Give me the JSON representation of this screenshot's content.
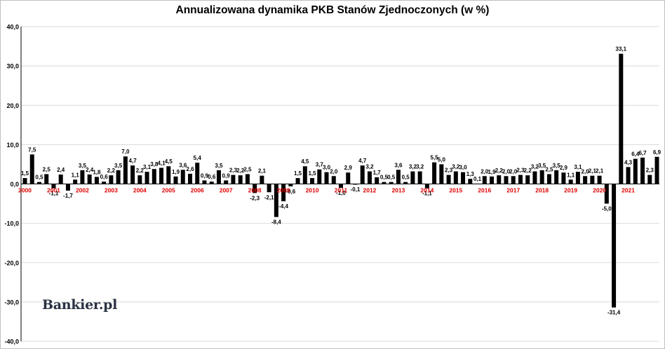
{
  "chart_data": {
    "type": "bar",
    "title": "Annualizowana dynamika PKB Stanów Zjednoczonych (w %)",
    "xlabel": "",
    "ylabel": "",
    "ylim": [
      -40,
      40
    ],
    "yticks": [
      "40,0",
      "30,0",
      "20,0",
      "10,0",
      "0,0",
      "-10,0",
      "-20,0",
      "-30,0",
      "-40,0"
    ],
    "grid": true,
    "legend": "none",
    "bar_color": "#000000",
    "year_label_color": "#e00000",
    "years": [
      "2000",
      "2001",
      "2002",
      "2003",
      "2004",
      "2005",
      "2006",
      "2007",
      "2008",
      "2009",
      "2010",
      "2011",
      "2012",
      "2013",
      "2014",
      "2015",
      "2016",
      "2017",
      "2018",
      "2019",
      "2020",
      "2021"
    ],
    "values": [
      1.5,
      7.5,
      0.5,
      2.5,
      -1.1,
      2.4,
      -1.7,
      1.1,
      3.5,
      2.4,
      1.8,
      0.6,
      2.2,
      3.5,
      7.0,
      4.7,
      2.2,
      3.1,
      3.8,
      4.1,
      4.5,
      1.9,
      3.6,
      2.6,
      5.4,
      0.9,
      0.6,
      3.5,
      0.9,
      2.3,
      2.2,
      2.5,
      -2.3,
      2.1,
      -2.1,
      -8.4,
      -4.4,
      -0.6,
      1.5,
      4.5,
      1.5,
      3.7,
      3.0,
      2.0,
      -1.0,
      2.9,
      -0.1,
      4.7,
      3.2,
      1.7,
      0.5,
      0.5,
      3.6,
      0.5,
      3.2,
      3.2,
      -1.1,
      5.5,
      5.0,
      2.3,
      3.2,
      3.0,
      1.3,
      0.1,
      2.0,
      1.9,
      2.2,
      2.0,
      2.0,
      2.3,
      2.2,
      3.2,
      3.5,
      2.5,
      3.5,
      2.9,
      1.1,
      3.1,
      2.0,
      2.1,
      2.1,
      -5.0,
      -31.4,
      33.1,
      4.3,
      6.4,
      6.7,
      2.3,
      6.9
    ],
    "value_labels": [
      "1,5",
      "7,5",
      "0,5",
      "2,5",
      "-1,1",
      "2,4",
      "-1,7",
      "1,1",
      "3,5",
      "2,4",
      "1,8",
      "0,6",
      "2,2",
      "3,5",
      "7,0",
      "4,7",
      "2,2",
      "3,1",
      "3,8",
      "4,1",
      "4,5",
      "1,9",
      "3,6",
      "2,6",
      "5,4",
      "0,9",
      "0,6",
      "3,5",
      "0,9",
      "2,3",
      "2,2",
      "2,5",
      "-2,3",
      "2,1",
      "-2,1",
      "-8,4",
      "-4,4",
      "-0,6",
      "1,5",
      "4,5",
      "1,5",
      "3,7",
      "3,0",
      "2,0",
      "-1,0",
      "2,9",
      "-0,1",
      "4,7",
      "3,2",
      "1,7",
      "0,5",
      "0,5",
      "3,6",
      "0,5",
      "3,2",
      "3,2",
      "-1,1",
      "5,5",
      "5,0",
      "2,3",
      "3,2",
      "3,0",
      "1,3",
      "0,1",
      "2,0",
      "1,9",
      "2,2",
      "2,0",
      "2,0",
      "2,3",
      "2,2",
      "3,2",
      "3,5",
      "2,5",
      "3,5",
      "2,9",
      "1,1",
      "3,1",
      "2,0",
      "2,1",
      "2,1",
      "-5,0",
      "-31,4",
      "33,1",
      "4,3",
      "6,4",
      "6,7",
      "2,3",
      "6,9"
    ]
  },
  "brand": {
    "name": "Bankier",
    "suffix": ".pl"
  }
}
